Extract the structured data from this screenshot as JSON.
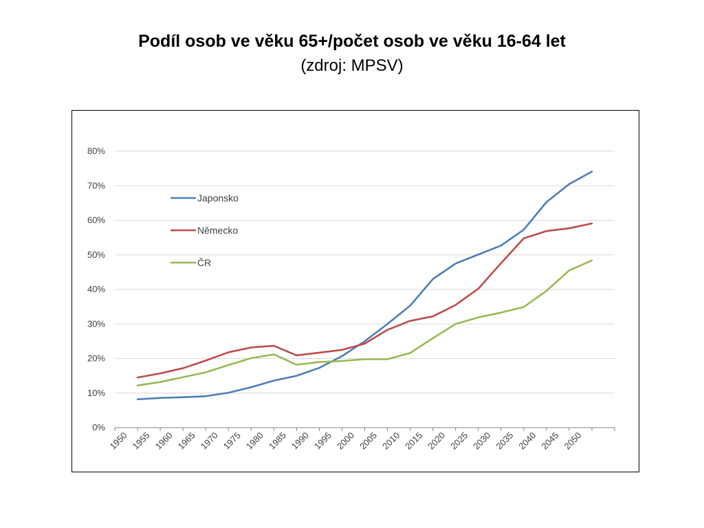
{
  "title": "Podíl osob ve věku 65+/počet osob ve věku 16-64 let",
  "subtitle": "(zdroj: MPSV)",
  "chart_data": {
    "type": "line",
    "x": [
      1950,
      1955,
      1960,
      1965,
      1970,
      1975,
      1980,
      1985,
      1990,
      1995,
      2000,
      2005,
      2010,
      2015,
      2020,
      2025,
      2030,
      2035,
      2040,
      2045,
      2050
    ],
    "categories": [
      "1950",
      "1955",
      "1960",
      "1965",
      "1970",
      "1975",
      "1980",
      "1985",
      "1990",
      "1995",
      "2000",
      "2005",
      "2010",
      "2015",
      "2020",
      "2025",
      "2030",
      "2035",
      "2040",
      "2045",
      "2050"
    ],
    "y_ticks": [
      "0%",
      "10%",
      "20%",
      "30%",
      "40%",
      "50%",
      "60%",
      "70%",
      "80%"
    ],
    "ylim": [
      0,
      80
    ],
    "grid": true,
    "legend_position": "top-left inside plot",
    "series": [
      {
        "name": "Japonsko",
        "color": "#4a7ebb",
        "values": [
          8.2,
          8.6,
          8.8,
          9.1,
          10.1,
          11.7,
          13.6,
          15.0,
          17.3,
          20.7,
          25.0,
          30.0,
          35.3,
          43.0,
          47.5,
          50.1,
          52.7,
          57.3,
          65.3,
          70.5,
          74.1
        ]
      },
      {
        "name": "Německo",
        "color": "#be4b48",
        "values": [
          14.5,
          15.7,
          17.2,
          19.4,
          21.8,
          23.2,
          23.7,
          20.9,
          21.7,
          22.5,
          24.3,
          28.3,
          30.9,
          32.2,
          35.5,
          40.2,
          47.6,
          54.8,
          56.9,
          57.7,
          59.1
        ]
      },
      {
        "name": "ČR",
        "color": "#98b954",
        "values": [
          12.2,
          13.2,
          14.6,
          16.0,
          18.1,
          20.1,
          21.2,
          18.2,
          19.0,
          19.3,
          19.8,
          19.8,
          21.6,
          25.9,
          30.0,
          31.9,
          33.3,
          34.9,
          39.6,
          45.5,
          48.4
        ]
      }
    ]
  }
}
